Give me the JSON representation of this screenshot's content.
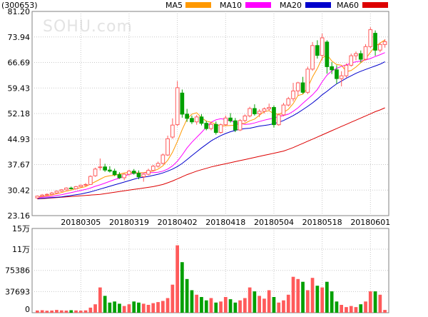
{
  "header": {
    "code": "(300653)",
    "legend": [
      {
        "label": "MA5",
        "color": "#ff9900"
      },
      {
        "label": "MA10",
        "color": "#ff00ff"
      },
      {
        "label": "MA20",
        "color": "#0000cc"
      },
      {
        "label": "MA60",
        "color": "#dd0000"
      }
    ]
  },
  "watermark": "SOHU.com",
  "colors": {
    "up": "#ff5a5a",
    "down": "#00a000"
  },
  "chart_data": [
    {
      "type": "candlestick",
      "ylim": [
        23.16,
        81.2
      ],
      "y_ticks": [
        "81.20",
        "73.94",
        "66.69",
        "59.43",
        "52.18",
        "44.93",
        "37.67",
        "30.42",
        "23.16"
      ],
      "x_ticks": [
        "20180305",
        "20180319",
        "20180402",
        "20180418",
        "20180504",
        "20180518",
        "20180601"
      ],
      "x_tick_index": [
        9,
        19,
        29,
        39,
        49,
        59,
        69
      ],
      "candles": [
        [
          28.2,
          28.9,
          27.9,
          28.7
        ],
        [
          28.7,
          29.3,
          28.5,
          29.0
        ],
        [
          29.0,
          29.5,
          28.8,
          29.2
        ],
        [
          29.2,
          29.9,
          29.0,
          29.6
        ],
        [
          29.6,
          30.3,
          29.4,
          30.1
        ],
        [
          30.1,
          30.7,
          29.9,
          30.5
        ],
        [
          30.5,
          31.2,
          30.3,
          31.0
        ],
        [
          31.0,
          31.4,
          30.6,
          30.8
        ],
        [
          30.8,
          31.6,
          30.6,
          31.4
        ],
        [
          31.4,
          32.0,
          31.2,
          31.8
        ],
        [
          31.8,
          32.4,
          31.5,
          32.0
        ],
        [
          32.0,
          34.6,
          31.9,
          34.3
        ],
        [
          34.5,
          36.8,
          34.2,
          36.4
        ],
        [
          36.8,
          39.4,
          36.0,
          37.0
        ],
        [
          37.0,
          37.9,
          35.6,
          36.1
        ],
        [
          36.1,
          37.2,
          35.4,
          35.8
        ],
        [
          35.8,
          36.5,
          34.4,
          34.8
        ],
        [
          34.8,
          35.5,
          33.6,
          33.9
        ],
        [
          33.9,
          35.2,
          33.2,
          34.9
        ],
        [
          34.9,
          36.2,
          34.5,
          35.8
        ],
        [
          35.8,
          36.4,
          34.8,
          35.2
        ],
        [
          35.2,
          36.0,
          33.5,
          34.2
        ],
        [
          34.2,
          35.1,
          32.8,
          34.9
        ],
        [
          34.9,
          36.5,
          34.6,
          36.0
        ],
        [
          36.0,
          37.6,
          35.8,
          37.2
        ],
        [
          37.2,
          38.5,
          36.8,
          38.0
        ],
        [
          38.0,
          40.8,
          37.7,
          40.4
        ],
        [
          40.4,
          45.9,
          40.1,
          45.0
        ],
        [
          45.5,
          50.8,
          45.0,
          48.9
        ],
        [
          49.0,
          61.4,
          48.6,
          59.5
        ],
        [
          58.0,
          59.0,
          51.0,
          52.0
        ],
        [
          52.0,
          53.5,
          49.8,
          50.8
        ],
        [
          50.8,
          51.6,
          49.2,
          49.8
        ],
        [
          49.8,
          51.8,
          49.0,
          51.2
        ],
        [
          51.2,
          52.0,
          48.8,
          49.4
        ],
        [
          49.4,
          50.1,
          47.4,
          47.9
        ],
        [
          47.9,
          49.8,
          47.4,
          49.1
        ],
        [
          49.1,
          49.9,
          46.2,
          46.8
        ],
        [
          46.8,
          49.3,
          46.5,
          49.0
        ],
        [
          49.0,
          51.6,
          48.6,
          50.9
        ],
        [
          50.9,
          52.3,
          49.6,
          50.1
        ],
        [
          50.1,
          50.9,
          46.9,
          47.5
        ],
        [
          47.5,
          50.6,
          47.2,
          50.2
        ],
        [
          50.2,
          51.9,
          49.7,
          51.5
        ],
        [
          51.5,
          54.1,
          51.1,
          53.6
        ],
        [
          53.6,
          54.8,
          51.6,
          52.1
        ],
        [
          52.1,
          53.4,
          51.2,
          52.8
        ],
        [
          52.8,
          53.9,
          52.2,
          53.5
        ],
        [
          53.5,
          55.0,
          52.9,
          53.9
        ],
        [
          53.9,
          54.5,
          48.2,
          49.0
        ],
        [
          49.0,
          52.1,
          48.7,
          51.8
        ],
        [
          51.8,
          55.2,
          51.4,
          54.6
        ],
        [
          54.6,
          56.9,
          54.2,
          56.4
        ],
        [
          56.4,
          60.9,
          55.6,
          58.6
        ],
        [
          58.6,
          61.2,
          57.3,
          60.9
        ],
        [
          60.9,
          62.6,
          57.8,
          58.2
        ],
        [
          58.2,
          65.5,
          57.7,
          64.8
        ],
        [
          64.8,
          72.5,
          64.3,
          71.5
        ],
        [
          71.5,
          73.0,
          67.8,
          68.7
        ],
        [
          68.7,
          74.9,
          67.3,
          73.7
        ],
        [
          72.5,
          73.0,
          63.5,
          65.5
        ],
        [
          65.5,
          66.8,
          63.4,
          64.6
        ],
        [
          64.6,
          65.9,
          60.6,
          62.1
        ],
        [
          62.1,
          64.2,
          59.9,
          62.9
        ],
        [
          62.9,
          66.4,
          62.4,
          65.9
        ],
        [
          65.9,
          69.2,
          65.5,
          68.6
        ],
        [
          68.6,
          69.8,
          67.3,
          69.2
        ],
        [
          69.2,
          70.1,
          66.7,
          67.6
        ],
        [
          67.6,
          71.9,
          67.3,
          71.2
        ],
        [
          71.2,
          76.7,
          70.8,
          76.0
        ],
        [
          75.0,
          75.8,
          68.6,
          70.2
        ],
        [
          70.2,
          72.4,
          69.6,
          71.8
        ],
        [
          71.8,
          73.3,
          70.9,
          72.6
        ]
      ],
      "ma5": [
        28.5,
        28.6,
        28.8,
        29.0,
        29.4,
        29.7,
        30.1,
        30.4,
        30.8,
        31.1,
        31.4,
        32.1,
        32.8,
        33.5,
        34.2,
        34.5,
        34.6,
        35.0,
        35.3,
        35.5,
        35.4,
        35.3,
        35.4,
        35.6,
        35.8,
        36.4,
        37.3,
        38.9,
        41.2,
        44.2,
        47.6,
        50.6,
        52.0,
        52.4,
        51.0,
        50.0,
        49.7,
        49.1,
        48.6,
        48.7,
        48.8,
        48.9,
        49.3,
        49.4,
        50.1,
        50.6,
        51.7,
        52.7,
        53.0,
        52.1,
        52.0,
        52.5,
        53.4,
        55.0,
        57.3,
        57.7,
        59.5,
        62.6,
        65.0,
        67.9,
        68.9,
        67.1,
        66.1,
        65.9,
        64.1,
        64.4,
        65.4,
        66.6,
        67.7,
        69.6,
        71.3,
        72.2,
        73.1
      ],
      "ma10": [
        28.3,
        28.4,
        28.5,
        28.6,
        28.9,
        29.1,
        29.4,
        29.7,
        30.0,
        30.3,
        30.6,
        31.0,
        31.5,
        31.9,
        32.4,
        32.9,
        33.4,
        33.8,
        34.4,
        34.9,
        35.2,
        35.3,
        35.3,
        35.4,
        35.4,
        35.5,
        35.8,
        36.4,
        37.3,
        38.6,
        40.4,
        42.4,
        44.0,
        45.4,
        46.8,
        48.3,
        49.7,
        50.4,
        50.7,
        50.5,
        50.1,
        49.6,
        49.4,
        49.1,
        49.2,
        49.5,
        49.9,
        50.3,
        50.6,
        50.9,
        51.3,
        51.6,
        52.0,
        52.8,
        53.8,
        55.1,
        56.3,
        57.5,
        59.0,
        61.2,
        63.1,
        64.3,
        65.0,
        65.6,
        66.0,
        66.5,
        66.9,
        67.1,
        67.4,
        67.8,
        68.4,
        68.9,
        69.5
      ],
      "ma20": [
        28.0,
        28.1,
        28.2,
        28.3,
        28.4,
        28.5,
        28.7,
        28.9,
        29.1,
        29.3,
        29.6,
        29.9,
        30.3,
        30.7,
        31.1,
        31.5,
        31.9,
        32.3,
        32.7,
        33.1,
        33.5,
        33.9,
        34.1,
        34.3,
        34.6,
        34.9,
        35.3,
        35.8,
        36.4,
        37.1,
        38.0,
        39.1,
        40.2,
        41.3,
        42.4,
        43.4,
        44.4,
        45.2,
        45.9,
        46.5,
        47.0,
        47.4,
        47.7,
        47.9,
        48.0,
        48.3,
        48.6,
        48.8,
        49.0,
        49.3,
        49.7,
        50.2,
        50.9,
        51.6,
        52.4,
        53.3,
        54.2,
        55.2,
        56.3,
        57.5,
        58.5,
        59.6,
        60.6,
        61.4,
        62.2,
        62.9,
        63.6,
        64.2,
        64.7,
        65.2,
        65.7,
        66.2,
        66.9
      ],
      "ma60": [
        27.9,
        28.0,
        28.1,
        28.2,
        28.3,
        28.4,
        28.5,
        28.6,
        28.7,
        28.8,
        28.9,
        29.0,
        29.1,
        29.2,
        29.4,
        29.6,
        29.8,
        30.0,
        30.2,
        30.4,
        30.6,
        30.8,
        31.0,
        31.2,
        31.4,
        31.7,
        32.0,
        32.5,
        33.0,
        33.6,
        34.2,
        34.8,
        35.3,
        35.8,
        36.2,
        36.6,
        37.0,
        37.3,
        37.6,
        37.9,
        38.2,
        38.5,
        38.8,
        39.1,
        39.4,
        39.7,
        40.0,
        40.3,
        40.6,
        40.9,
        41.2,
        41.5,
        42.0,
        42.5,
        43.1,
        43.7,
        44.3,
        44.9,
        45.5,
        46.1,
        46.7,
        47.3,
        47.9,
        48.5,
        49.1,
        49.7,
        50.3,
        50.9,
        51.5,
        52.1,
        52.7,
        53.2,
        53.8
      ]
    },
    {
      "type": "bar",
      "ylim": [
        0,
        150000
      ],
      "y_ticks": [
        {
          "label": "15万",
          "value": 150000
        },
        {
          "label": "11万",
          "value": 113079
        },
        {
          "label": "75386",
          "value": 75386
        },
        {
          "label": "37693",
          "value": 37693
        },
        {
          "label": "0",
          "value": 0
        }
      ],
      "values": [
        4000,
        4500,
        3500,
        4000,
        5000,
        4200,
        3800,
        4500,
        4100,
        3700,
        4200,
        9000,
        15000,
        45000,
        30000,
        18000,
        20000,
        16000,
        12000,
        15000,
        20000,
        18000,
        16000,
        14000,
        17000,
        19000,
        21000,
        26000,
        50000,
        120000,
        90000,
        60000,
        40000,
        32000,
        28000,
        22000,
        26000,
        18000,
        20000,
        28000,
        24000,
        18000,
        22000,
        26000,
        45000,
        38000,
        30000,
        25000,
        40000,
        28000,
        18000,
        22000,
        32000,
        64000,
        60000,
        55000,
        40000,
        62000,
        48000,
        45000,
        55000,
        38000,
        20000,
        14000,
        10000,
        12000,
        10000,
        15000,
        20000,
        38000,
        38000,
        32000,
        5000
      ]
    }
  ]
}
